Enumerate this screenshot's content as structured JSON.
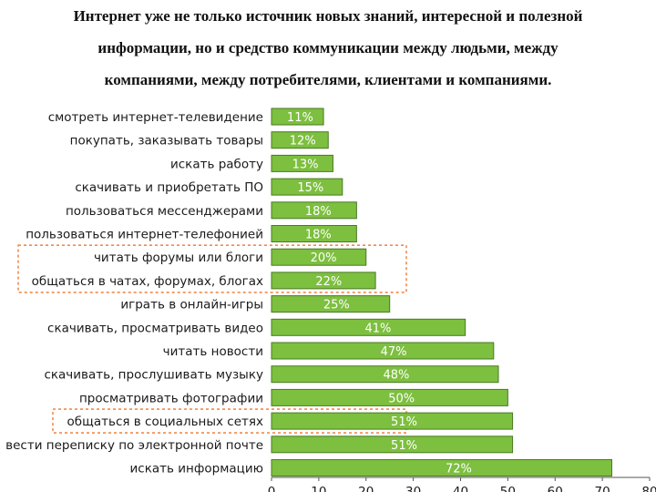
{
  "heading": {
    "line1": "Интернет уже не только источник новых знаний, интересной и полезной",
    "line2": "информации, но и средство коммуникации между людьми, между",
    "line3": "компаниями, между потребителями, клиентами и компаниями."
  },
  "chart_data": {
    "type": "bar",
    "orientation": "horizontal",
    "categories": [
      "смотреть интернет-телевидение",
      "покупать, заказывать товары",
      "искать работу",
      "скачивать и приобретать ПО",
      "пользоваться мессенджерами",
      "пользоваться интернет-телефонией",
      "читать форумы или блоги",
      "общаться в чатах, форумах, блогах",
      "играть в онлайн-игры",
      "скачивать, просматривать видео",
      "читать новости",
      "скачивать, прослушивать музыку",
      "просматривать фотографии",
      "общаться в социальных сетях",
      "вести переписку по электронной почте",
      "искать информацию"
    ],
    "values": [
      11,
      12,
      13,
      15,
      18,
      18,
      20,
      22,
      25,
      41,
      47,
      48,
      50,
      51,
      51,
      72
    ],
    "value_labels": [
      "11%",
      "12%",
      "13%",
      "15%",
      "18%",
      "18%",
      "20%",
      "22%",
      "25%",
      "41%",
      "47%",
      "48%",
      "50%",
      "51%",
      "51%",
      "72%"
    ],
    "xlim": [
      0,
      80
    ],
    "x_ticks": [
      "0",
      "10",
      "20",
      "30",
      "40",
      "50",
      "60",
      "70",
      "80"
    ],
    "bar_color": "#7dbf3f",
    "bar_edge_color": "#4a7a23",
    "highlight_color": "#f08a4b",
    "highlight_groups": [
      [
        6,
        7
      ],
      [
        13
      ]
    ],
    "grid": false
  }
}
